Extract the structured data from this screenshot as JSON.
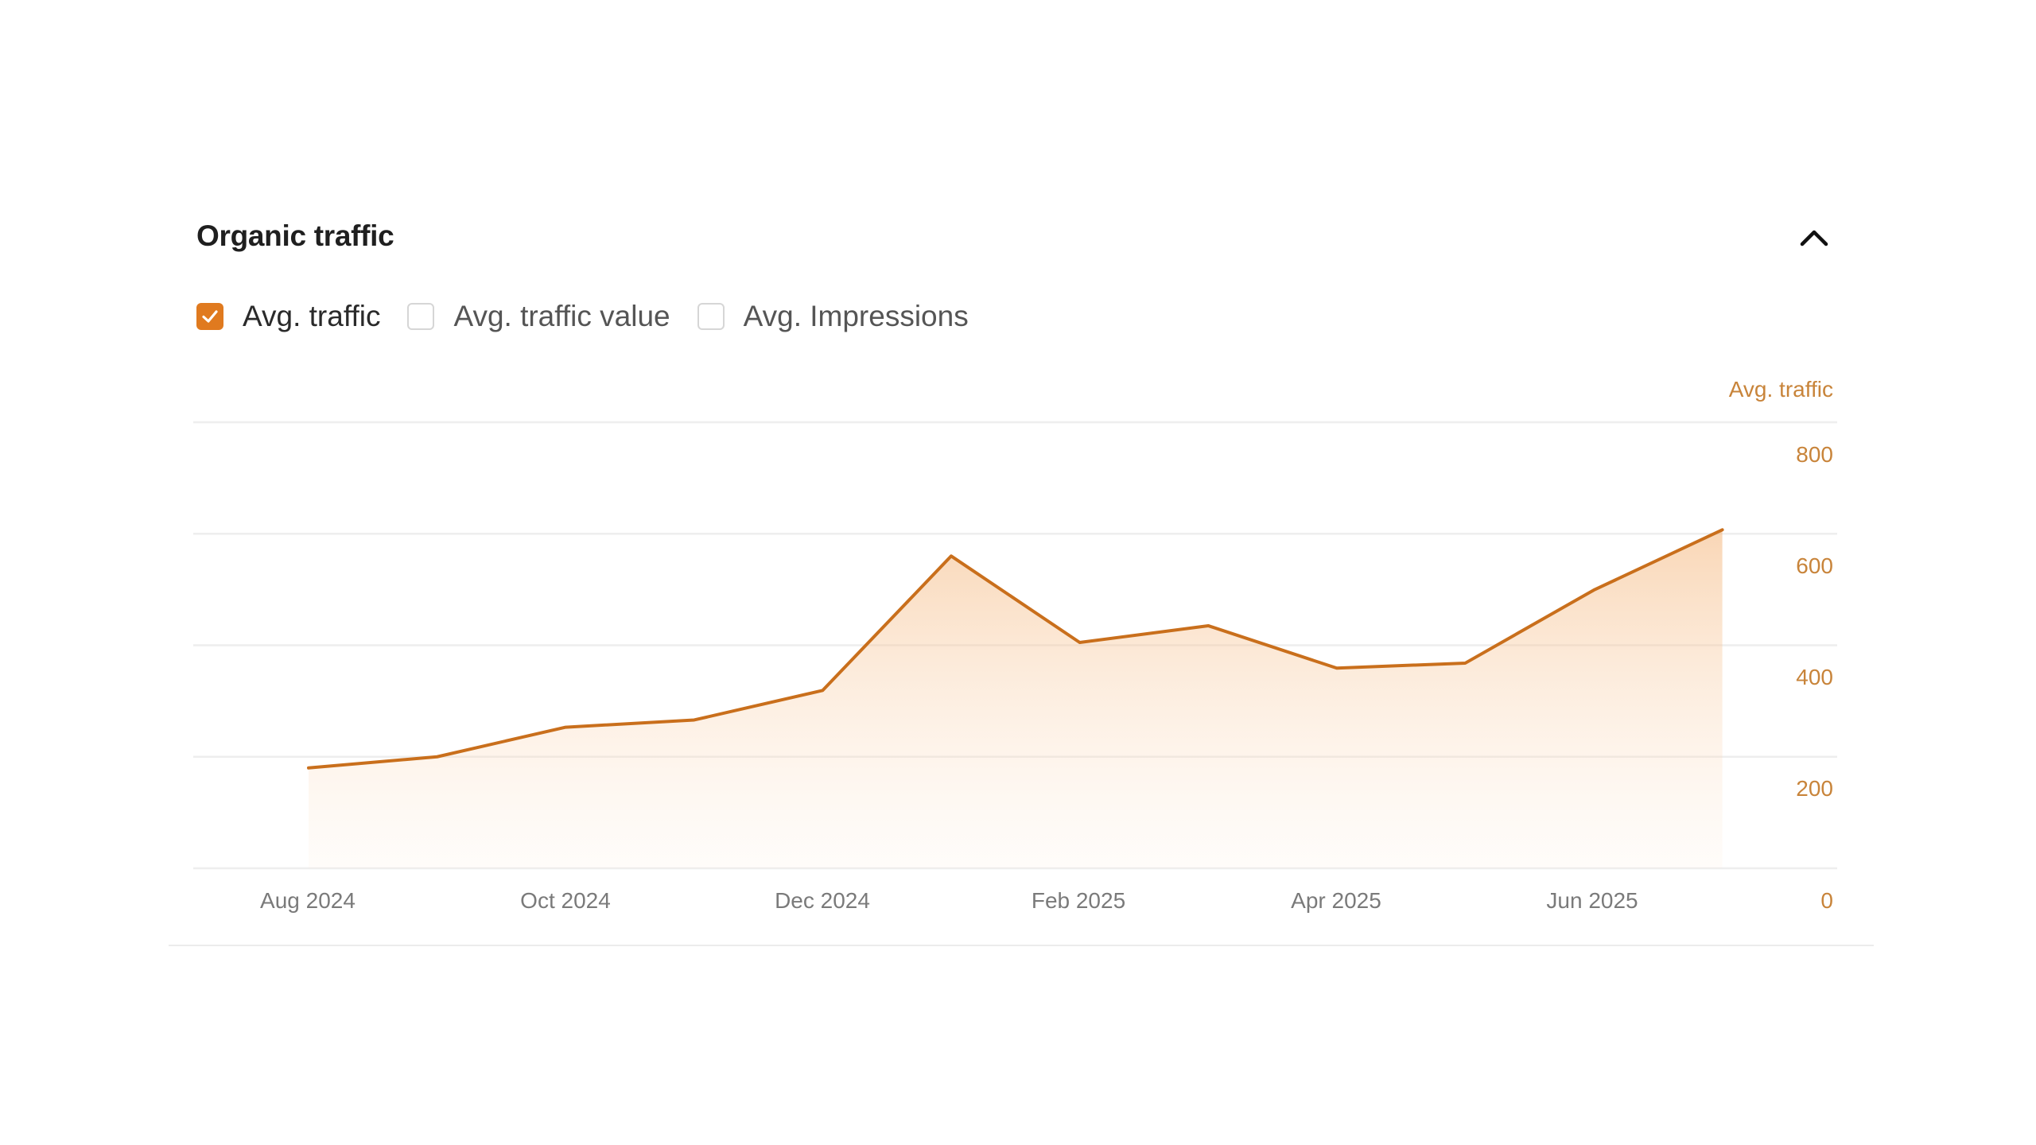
{
  "panel": {
    "title": "Organic traffic",
    "collapse_icon": "chevron-up-icon"
  },
  "legend": {
    "items": [
      {
        "label": "Avg. traffic",
        "checked": true
      },
      {
        "label": "Avg. traffic value",
        "checked": false
      },
      {
        "label": "Avg. Impressions",
        "checked": false
      }
    ]
  },
  "colors": {
    "accent": "#e07a1f",
    "line": "#c96f1c",
    "axis_label": "#c8843a",
    "gridline": "#eeeeee"
  },
  "axis": {
    "y_title": "Avg. traffic",
    "y_ticks": [
      "800",
      "600",
      "400",
      "200",
      "0"
    ],
    "x_ticks": [
      "Aug 2024",
      "Oct 2024",
      "Dec 2024",
      "Feb 2025",
      "Apr 2025",
      "Jun 2025"
    ]
  },
  "chart_data": {
    "type": "area",
    "title": "Organic traffic",
    "xlabel": "",
    "ylabel": "Avg. traffic",
    "ylim": [
      0,
      800
    ],
    "grid": true,
    "legend_position": "top-left",
    "x": [
      "Aug 2024",
      "Sep 2024",
      "Oct 2024",
      "Nov 2024",
      "Dec 2024",
      "Jan 2025",
      "Feb 2025",
      "Mar 2025",
      "Apr 2025",
      "May 2025",
      "Jun 2025",
      "Jul 2025"
    ],
    "x_tick_labels": [
      "Aug 2024",
      "Oct 2024",
      "Dec 2024",
      "Feb 2025",
      "Apr 2025",
      "Jun 2025"
    ],
    "y_tick_labels": [
      "0",
      "200",
      "400",
      "600",
      "800"
    ],
    "series": [
      {
        "name": "Avg. traffic",
        "values": [
          180,
          200,
          253,
          266,
          319,
          560,
          405,
          435,
          359,
          368,
          499,
          607
        ]
      }
    ]
  }
}
